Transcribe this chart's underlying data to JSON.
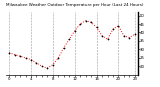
{
  "title": "Milwaukee Weather Outdoor Temperature per Hour (Last 24 Hours)",
  "hours": [
    0,
    1,
    2,
    3,
    4,
    5,
    6,
    7,
    8,
    9,
    10,
    11,
    12,
    13,
    14,
    15,
    16,
    17,
    18,
    19,
    20,
    21,
    22,
    23
  ],
  "temps": [
    28,
    27,
    26,
    25,
    24,
    22,
    20,
    19,
    21,
    25,
    31,
    36,
    41,
    45,
    47,
    46,
    43,
    38,
    36,
    42,
    44,
    38,
    37,
    39
  ],
  "line_color": "#ff0000",
  "marker_color": "#000000",
  "bg_color": "#ffffff",
  "grid_color": "#999999",
  "title_fontsize": 3.0,
  "tick_fontsize": 2.8,
  "ylim_min": 15,
  "ylim_max": 52,
  "yticks": [
    20,
    25,
    30,
    35,
    40,
    45,
    50
  ],
  "vgrid_positions": [
    0,
    4,
    8,
    12,
    16,
    20,
    23
  ]
}
